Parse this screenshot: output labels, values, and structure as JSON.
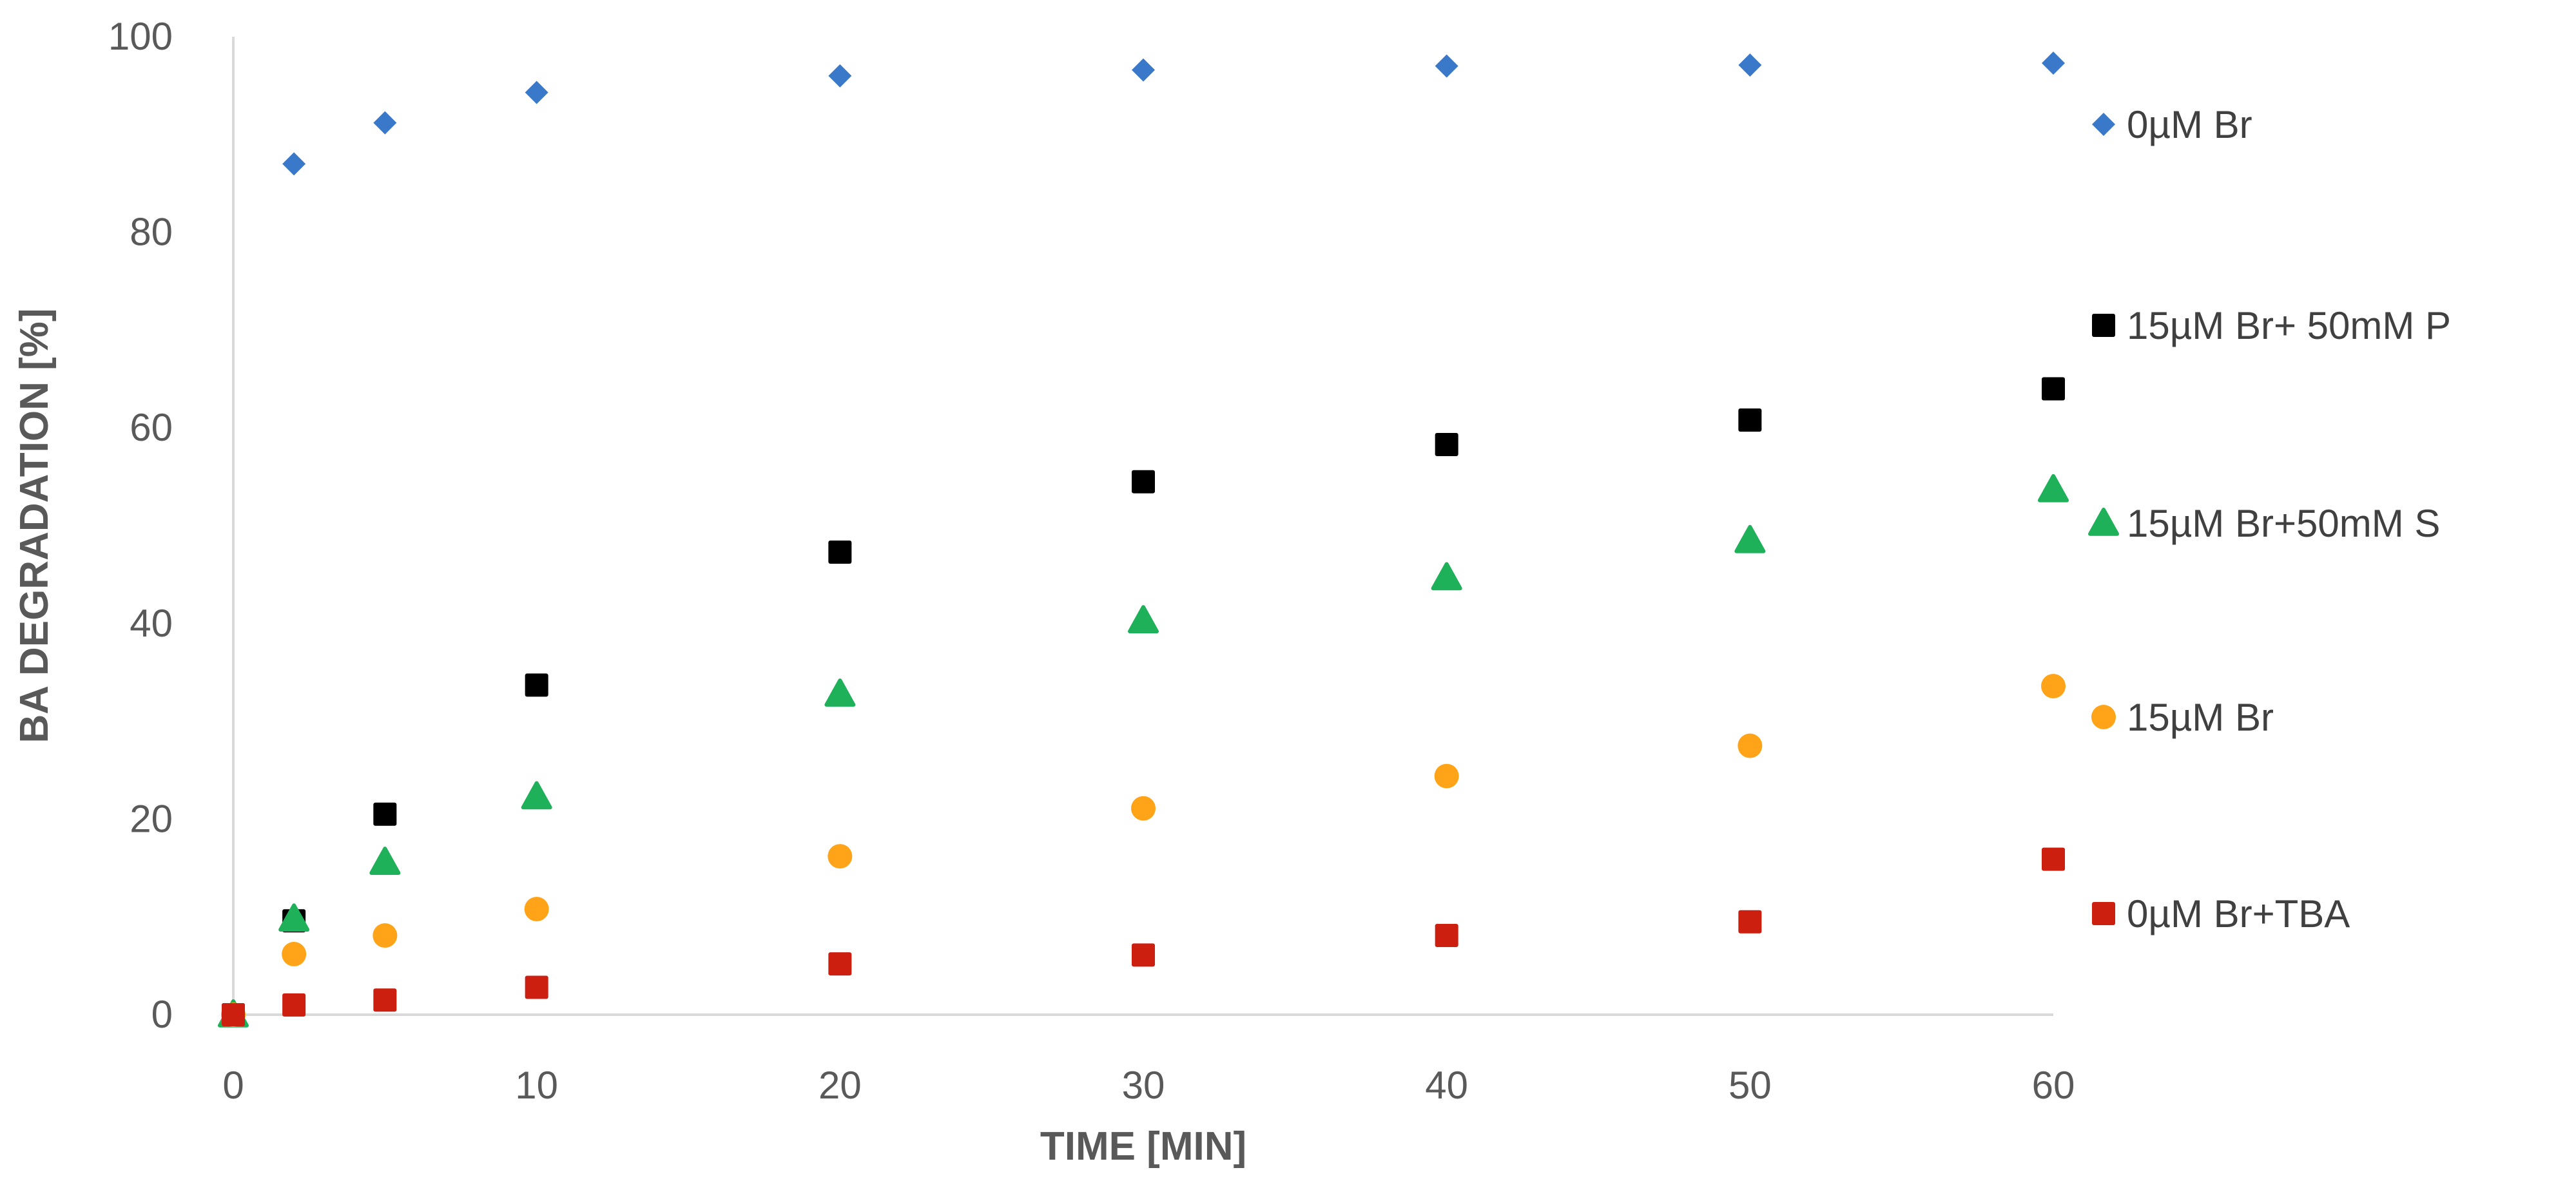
{
  "chart_data": {
    "type": "scatter",
    "title": "",
    "xlabel": "TIME [MIN]",
    "ylabel": "BA DEGRADATION [%]",
    "xlim": [
      0,
      60
    ],
    "ylim": [
      0,
      100
    ],
    "xticks": [
      "0",
      "10",
      "20",
      "30",
      "40",
      "50",
      "60"
    ],
    "yticks": [
      "0",
      "20",
      "40",
      "60",
      "80",
      "100"
    ],
    "grid": false,
    "legend_position": "right",
    "series": [
      {
        "name": "0µM Br",
        "marker": "diamond",
        "color": "#3a78c9",
        "x": [
          2,
          5,
          10,
          20,
          30,
          40,
          50,
          60
        ],
        "y": [
          87,
          91.2,
          94.3,
          96,
          96.6,
          97,
          97.1,
          97.3
        ]
      },
      {
        "name": "15µM Br+ 50mM P",
        "marker": "square",
        "color": "#000000",
        "x": [
          0,
          2,
          5,
          10,
          20,
          30,
          40,
          50,
          60
        ],
        "y": [
          0,
          9.6,
          20.5,
          33.7,
          47.3,
          54.5,
          58.3,
          60.8,
          64
        ]
      },
      {
        "name": "15µM Br+50mM S",
        "marker": "triangle",
        "color": "#1fb05a",
        "x": [
          0,
          2,
          5,
          10,
          20,
          30,
          40,
          50,
          60
        ],
        "y": [
          0,
          9.8,
          15.6,
          22.3,
          32.8,
          40.3,
          44.7,
          48.5,
          53.7
        ]
      },
      {
        "name": "15µM Br",
        "marker": "circle",
        "color": "#ffa319",
        "x": [
          0,
          2,
          5,
          10,
          20,
          30,
          40,
          50,
          60
        ],
        "y": [
          0,
          6.2,
          8.1,
          10.8,
          16.2,
          21.1,
          24.4,
          27.5,
          33.6
        ]
      },
      {
        "name": "0µM Br+TBA",
        "marker": "square",
        "color": "#cc1f10",
        "x": [
          0,
          2,
          5,
          10,
          20,
          30,
          40,
          50,
          60
        ],
        "y": [
          0,
          1,
          1.5,
          2.8,
          5.2,
          6.1,
          8.1,
          9.5,
          15.9
        ]
      }
    ]
  }
}
